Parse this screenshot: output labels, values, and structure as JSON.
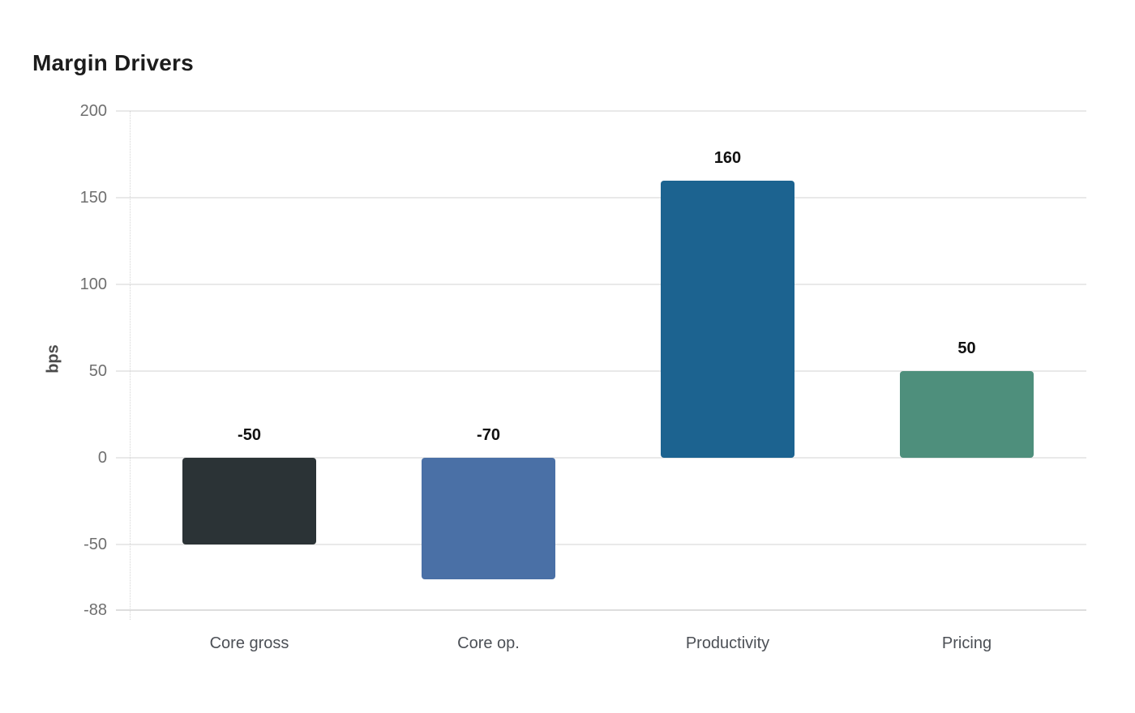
{
  "page": {
    "background": "#ffffff"
  },
  "chart_data": {
    "type": "bar",
    "title": "Margin Drivers",
    "ylabel": "bps",
    "xlabel": "",
    "categories": [
      "Core gross",
      "Core op.",
      "Productivity",
      "Pricing"
    ],
    "values": [
      -50,
      -70,
      160,
      50
    ],
    "value_labels": [
      "-50",
      "-70",
      "160",
      "50"
    ],
    "bar_colors": [
      "#2b3336",
      "#4a70a6",
      "#1c6390",
      "#4e8f7c"
    ],
    "yticks": [
      200,
      150,
      100,
      50,
      0,
      -50,
      -88
    ],
    "ytick_labels": [
      "200",
      "150",
      "100",
      "50",
      "0",
      "-50",
      "-88"
    ],
    "ylim": [
      -88,
      200
    ],
    "grid": "horizontal",
    "legend": "none",
    "colors": {
      "gridline": "#e9e9e9",
      "axis_dotted_line": "#d4d4d4",
      "tick_label": "#6f6f6f",
      "category_label": "#4c5056",
      "value_label": "#111111",
      "title": "#1c1c1c",
      "y_axis_title": "#4b4b4b"
    }
  }
}
